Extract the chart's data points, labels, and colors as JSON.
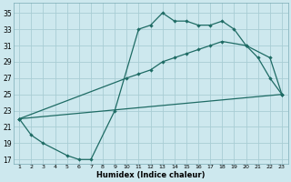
{
  "xlabel": "Humidex (Indice chaleur)",
  "bg_color": "#cde8ee",
  "grid_color": "#a8cdd4",
  "line_color": "#1e6b64",
  "xlim": [
    0.5,
    23.5
  ],
  "ylim": [
    16.5,
    36.2
  ],
  "xticks": [
    1,
    2,
    3,
    4,
    5,
    6,
    7,
    8,
    9,
    10,
    11,
    12,
    13,
    14,
    15,
    16,
    17,
    18,
    19,
    20,
    21,
    22,
    23
  ],
  "yticks": [
    17,
    19,
    21,
    23,
    25,
    27,
    29,
    31,
    33,
    35
  ],
  "line1_x": [
    1,
    2,
    3,
    5,
    6,
    7,
    9,
    11,
    12,
    13,
    14,
    15,
    16,
    17,
    18,
    19,
    20,
    21,
    22,
    23
  ],
  "line1_y": [
    22,
    20,
    19,
    17.5,
    17.0,
    17.0,
    23,
    33,
    33.5,
    35,
    34,
    34,
    33.5,
    33.5,
    34,
    33,
    31,
    29.5,
    27,
    25
  ],
  "line2_x": [
    1,
    10,
    11,
    12,
    13,
    14,
    15,
    16,
    17,
    18,
    20,
    22,
    23
  ],
  "line2_y": [
    22,
    27,
    27.5,
    28,
    29,
    29.5,
    30,
    30.5,
    31,
    31.5,
    31,
    29.5,
    25
  ],
  "line3_x": [
    1,
    23
  ],
  "line3_y": [
    22,
    25
  ]
}
